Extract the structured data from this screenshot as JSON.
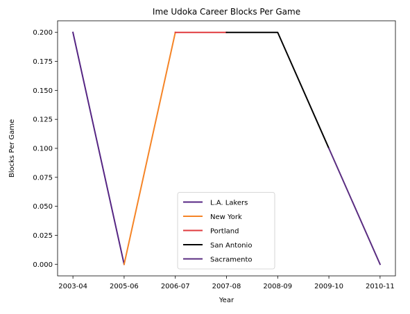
{
  "chart_data": {
    "type": "line",
    "title": "Ime Udoka Career Blocks Per Game",
    "xlabel": "Year",
    "ylabel": "Blocks Per Game",
    "categories": [
      "2003-04",
      "2005-06",
      "2006-07",
      "2007-08",
      "2008-09",
      "2009-10",
      "2010-11"
    ],
    "ylim": [
      -0.01,
      0.21
    ],
    "yticks": [
      "0.000",
      "0.025",
      "0.050",
      "0.075",
      "0.100",
      "0.125",
      "0.150",
      "0.175",
      "0.200"
    ],
    "grid": false,
    "legend_position": "lower-center",
    "series": [
      {
        "name": "L.A. Lakers",
        "color": "#552583",
        "x": [
          "2003-04",
          "2005-06"
        ],
        "values": [
          0.2,
          0.0
        ]
      },
      {
        "name": "New York",
        "color": "#F58426",
        "x": [
          "2005-06",
          "2006-07"
        ],
        "values": [
          0.0,
          0.2
        ]
      },
      {
        "name": "Portland",
        "color": "#E03A3E",
        "x": [
          "2006-07",
          "2007-08"
        ],
        "values": [
          0.2,
          0.2
        ]
      },
      {
        "name": "San Antonio",
        "color": "#000000",
        "x": [
          "2007-08",
          "2008-09",
          "2009-10"
        ],
        "values": [
          0.2,
          0.2,
          0.1
        ]
      },
      {
        "name": "Sacramento",
        "color": "#5A2D81",
        "x": [
          "2009-10",
          "2010-11"
        ],
        "values": [
          0.1,
          0.0
        ]
      }
    ]
  }
}
